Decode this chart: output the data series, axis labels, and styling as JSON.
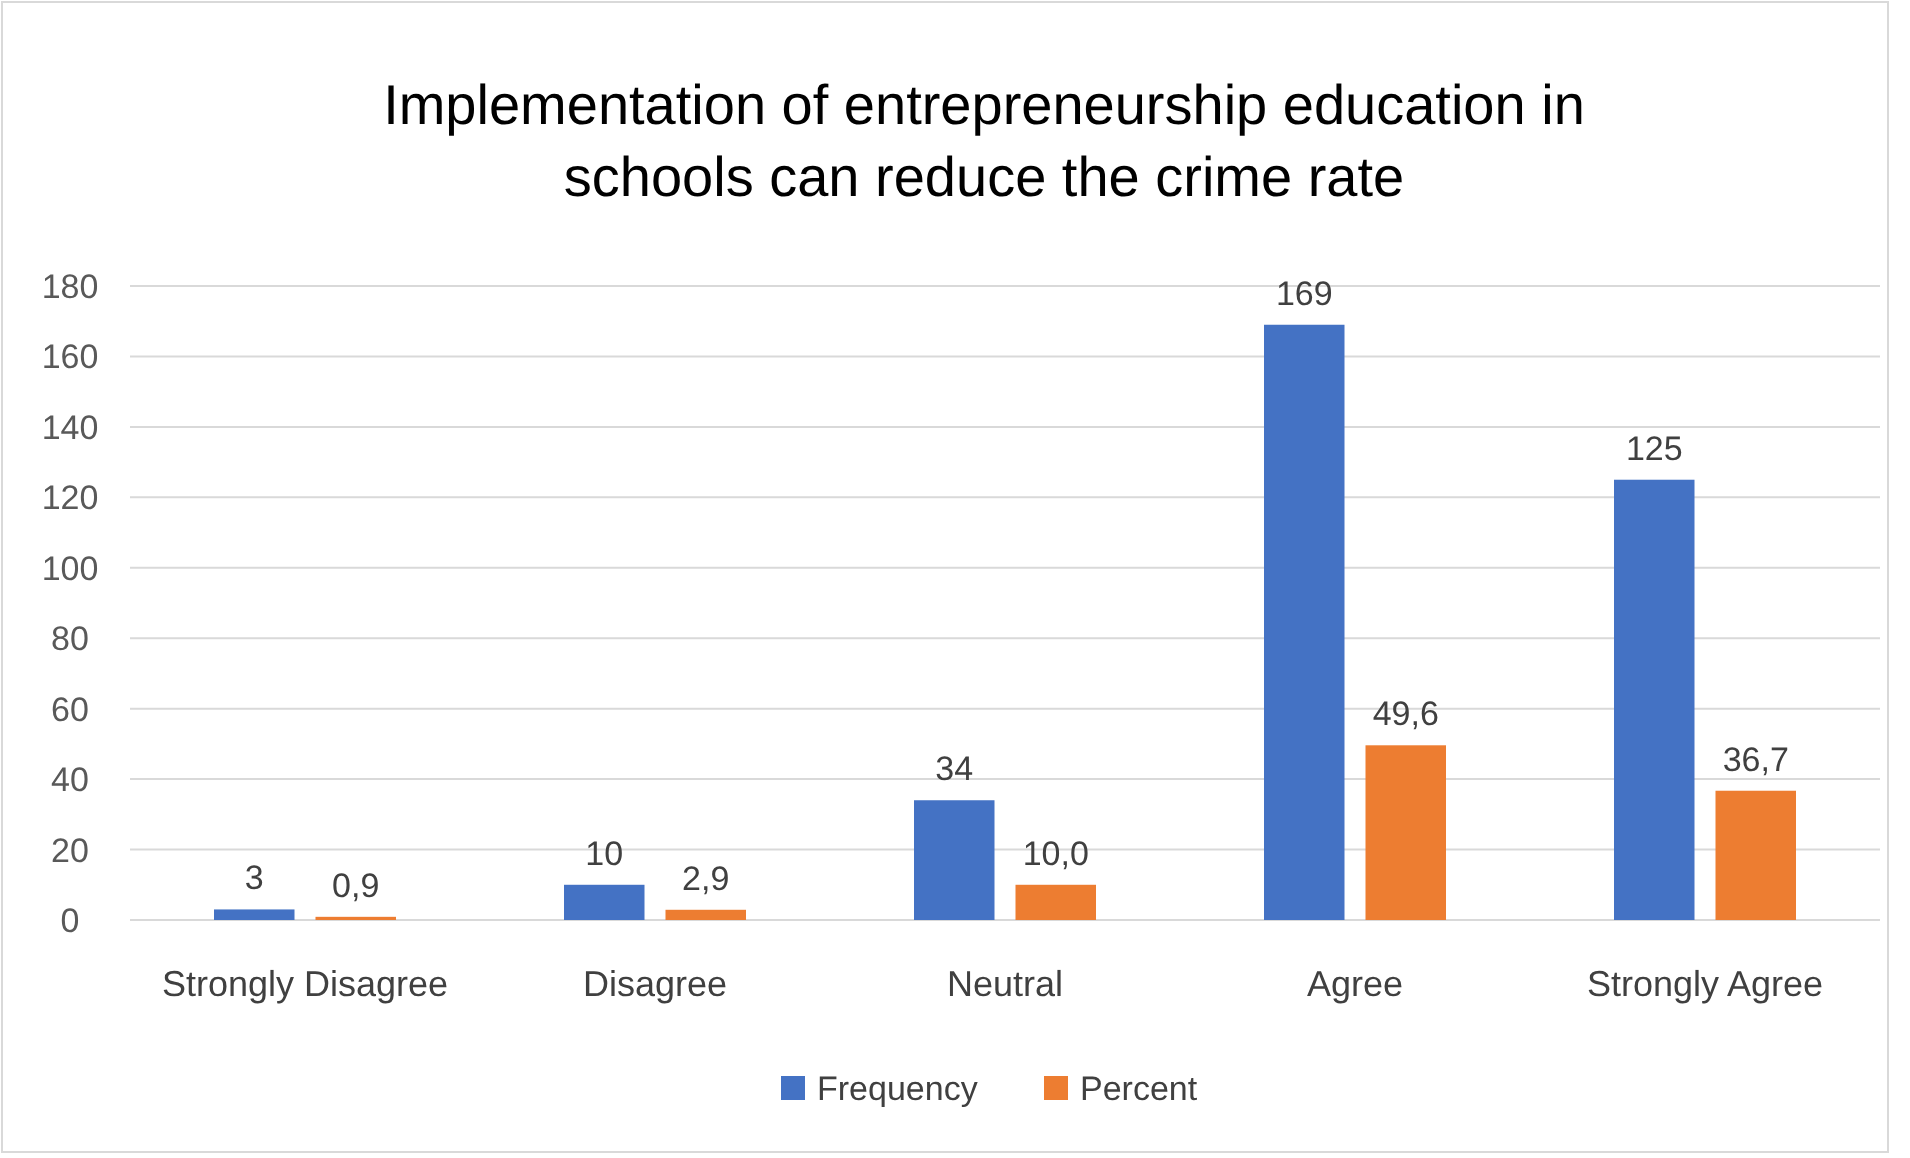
{
  "chart_data": {
    "type": "bar",
    "title": "Implementation of entrepreneurship education in schools can reduce the crime rate",
    "categories": [
      "Strongly Disagree",
      "Disagree",
      "Neutral",
      "Agree",
      "Strongly Agree"
    ],
    "series": [
      {
        "name": "Frequency",
        "color": "#4472c4",
        "values": [
          3,
          10,
          34,
          169,
          125
        ],
        "value_labels": [
          "3",
          "10",
          "34",
          "169",
          "125"
        ]
      },
      {
        "name": "Percent",
        "color": "#ed7d31",
        "values": [
          0.9,
          2.9,
          10.0,
          49.6,
          36.7
        ],
        "value_labels": [
          "0,9",
          "2,9",
          "10,0",
          "49,6",
          "36,7"
        ]
      }
    ],
    "ylim": [
      0,
      180
    ],
    "yticks": [
      0,
      20,
      40,
      60,
      80,
      100,
      120,
      140,
      160,
      180
    ],
    "grid": "y",
    "legend": "bottom"
  }
}
